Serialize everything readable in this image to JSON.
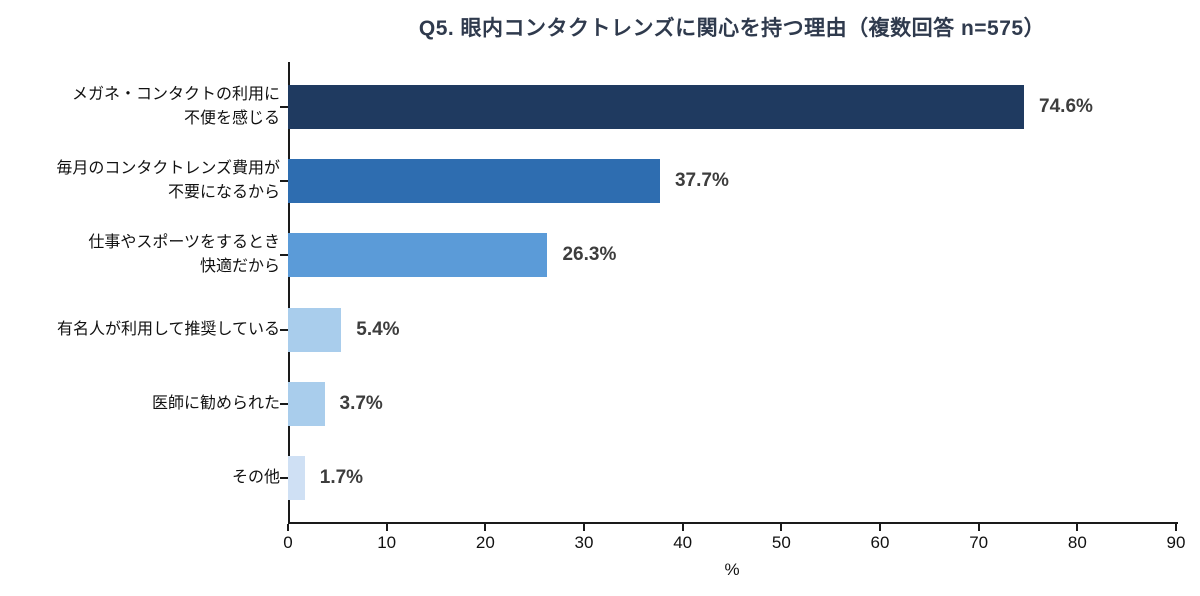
{
  "title": "Q5. 眼内コンタクトレンズに関心を持つ理由（複数回答 n=575）",
  "chart_data": {
    "type": "bar",
    "orientation": "horizontal",
    "title": "Q5. 眼内コンタクトレンズに関心を持つ理由（複数回答 n=575）",
    "categories": [
      "メガネ・コンタクトの利用に\n不便を感じる",
      "毎月のコンタクトレンズ費用が\n不要になるから",
      "仕事やスポーツをするとき\n快適だから",
      "有名人が利用して推奨している",
      "医師に勧められた",
      "その他"
    ],
    "values": [
      74.6,
      37.7,
      26.3,
      5.4,
      3.7,
      1.7
    ],
    "value_labels": [
      "74.6%",
      "37.7%",
      "26.3%",
      "5.4%",
      "3.7%",
      "1.7%"
    ],
    "bar_colors": [
      "#1f3a60",
      "#2e6db0",
      "#5b9bd8",
      "#a9cdec",
      "#a9cdec",
      "#cfe0f4"
    ],
    "xlabel": "%",
    "xlim": [
      0,
      90
    ],
    "xticks": [
      0,
      10,
      20,
      30,
      40,
      50,
      60,
      70,
      80,
      90
    ],
    "grid": false,
    "legend": null
  },
  "colors": {
    "title_text": "#2f3a4d",
    "value_label_text": "#3d3d3d",
    "category_label_text": "#111111",
    "axis_line": "#1a1a1a",
    "background": "#ffffff"
  }
}
